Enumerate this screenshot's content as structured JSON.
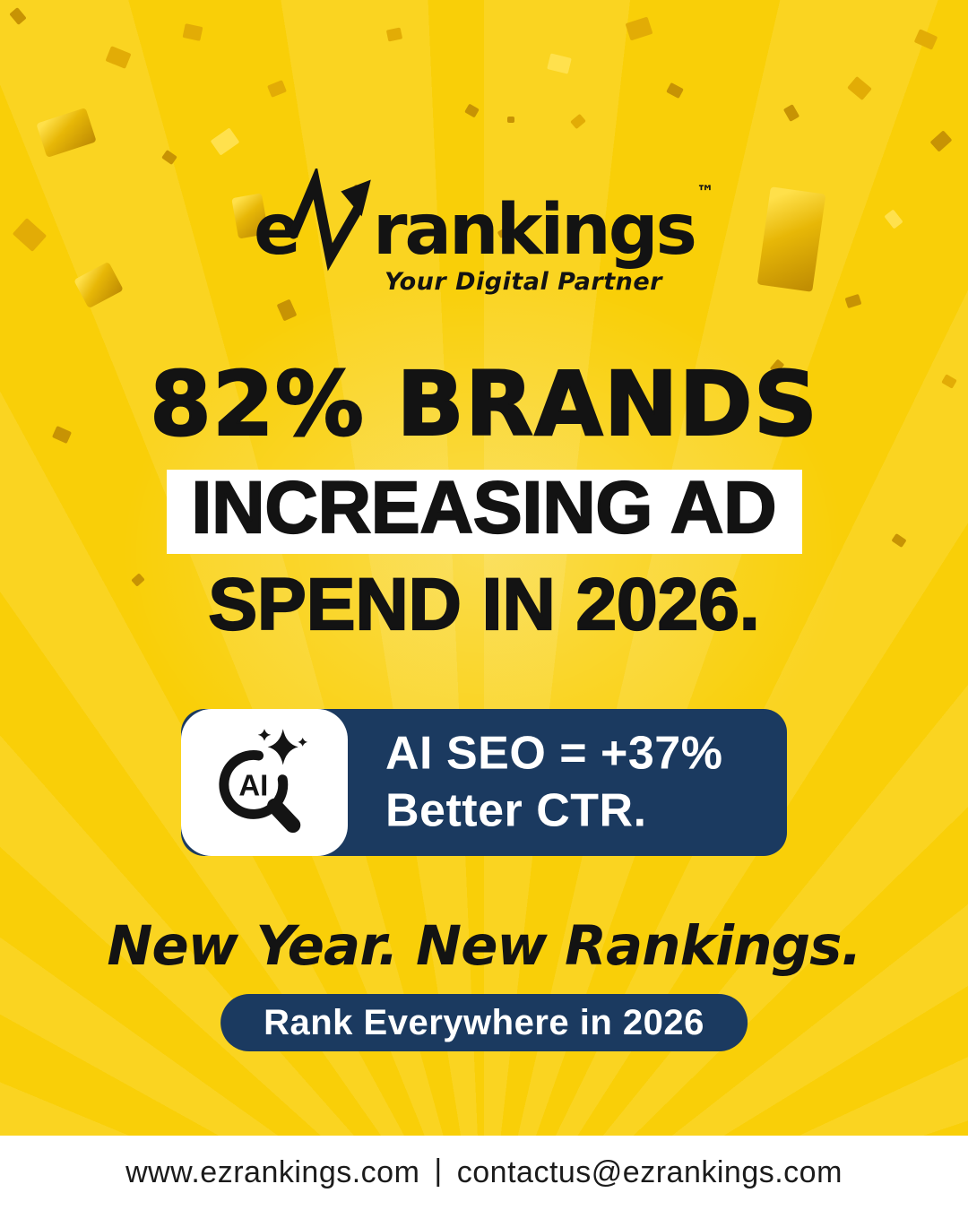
{
  "logo": {
    "e": "e",
    "rankings": "rankings",
    "tm": "™",
    "tagline": "Your Digital Partner"
  },
  "headline": {
    "line1": "82% BRANDS",
    "line2": "INCREASING AD",
    "line3": "SPEND IN 2026."
  },
  "stat_card": {
    "icon": "ai-search-icon",
    "icon_label": "AI",
    "line1": "AI SEO = +37%",
    "line2": "Better CTR."
  },
  "message": "New Year. New Rankings.",
  "cta": {
    "label": "Rank Everywhere in 2026"
  },
  "footer": {
    "website": "www.ezrankings.com",
    "separator": "|",
    "email": "contactus@ezrankings.com"
  },
  "colors": {
    "background_yellow": "#F9CF08",
    "navy": "#1B3A60",
    "highlight_white": "#FFFFFF",
    "text_black": "#131313",
    "confetti_gold": "#E2AC06"
  }
}
